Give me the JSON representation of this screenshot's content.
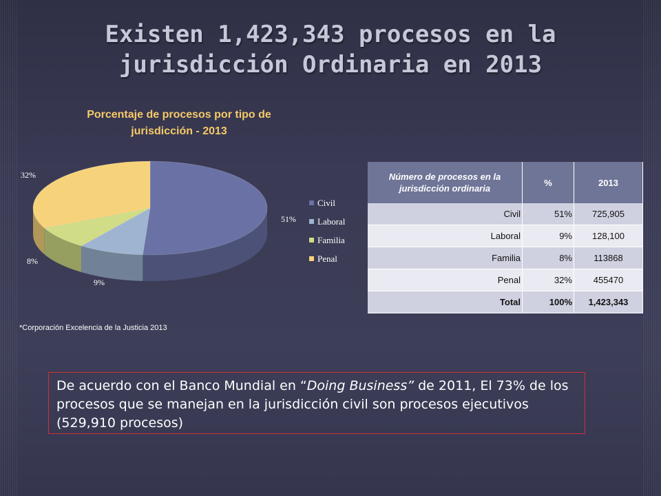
{
  "slide": {
    "title_line1": "Existen 1,423,343 procesos en la",
    "title_line2": "jurisdicción Ordinaria en 2013",
    "source": "*Corporación Excelencia de la Justicia 2013",
    "note": {
      "part1": "De acuerdo con el Banco Mundial en “",
      "italic": "Doing Business”",
      "part2": " de 2011, El 73% de los procesos que se manejan en la jurisdicción civil son procesos ejecutivos (529,910 procesos)"
    }
  },
  "chart_data": {
    "type": "pie",
    "title_line1": "Porcentaje de procesos por tipo de",
    "title_line2": "jurisdicción - 2013",
    "categories": [
      "Civil",
      "Laboral",
      "Familia",
      "Penal"
    ],
    "values": [
      51,
      9,
      8,
      32
    ],
    "labels": [
      "51%",
      "9%",
      "8%",
      "32%"
    ],
    "colors": [
      "#6a72a5",
      "#9eb4d0",
      "#d1dc86",
      "#f6d37a"
    ],
    "legend_position": "right",
    "three_d": true
  },
  "table": {
    "headers": [
      "Número de procesos en la jurisdicción ordinaria",
      "%",
      "2013"
    ],
    "rows": [
      {
        "label": "Civil",
        "pct": "51%",
        "value": "725,905"
      },
      {
        "label": "Laboral",
        "pct": "9%",
        "value": "128,100"
      },
      {
        "label": "Familia",
        "pct": "8%",
        "value": "113868"
      },
      {
        "label": "Penal",
        "pct": "32%",
        "value": "455470"
      }
    ],
    "total": {
      "label": "Total",
      "pct": "100%",
      "value": "1,423,343"
    }
  }
}
